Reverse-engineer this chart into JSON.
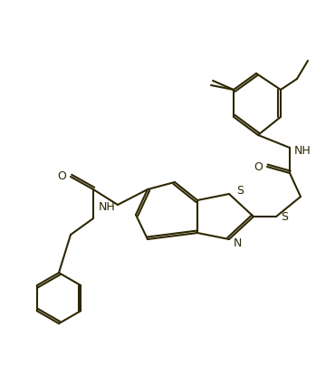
{
  "bg_color": "#ffffff",
  "line_color": "#2d2700",
  "line_width": 1.5,
  "font_size": 9,
  "figsize": [
    3.49,
    4.06
  ],
  "dpi": 100,
  "atoms": {
    "S_label": "S",
    "N_label": "N",
    "O_label": "O",
    "NH_label": "NH"
  }
}
